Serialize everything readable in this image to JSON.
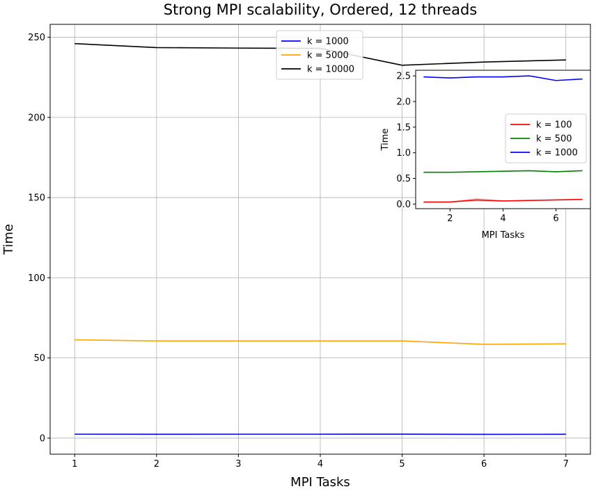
{
  "chart_data": [
    {
      "type": "line",
      "title": "Strong MPI scalability, Ordered, 12 threads",
      "xlabel": "MPI Tasks",
      "ylabel": "Time",
      "x": [
        1,
        2,
        3,
        4,
        5,
        6,
        7
      ],
      "xlim": [
        0.7,
        7.3
      ],
      "ylim": [
        -10,
        258
      ],
      "xticks": [
        1,
        2,
        3,
        4,
        5,
        6,
        7
      ],
      "yticks": [
        0,
        50,
        100,
        150,
        200,
        250
      ],
      "grid": true,
      "legend_position": "top-center",
      "series": [
        {
          "name": "k = 1000",
          "color": "#0000ff",
          "values": [
            2.47,
            2.45,
            2.47,
            2.47,
            2.49,
            2.4,
            2.43
          ]
        },
        {
          "name": "k = 5000",
          "color": "#ffa500",
          "values": [
            61.3,
            60.6,
            60.6,
            60.6,
            60.6,
            58.5,
            58.8
          ]
        },
        {
          "name": "k = 10000",
          "color": "#000000",
          "values": [
            246.0,
            243.5,
            243.2,
            243.0,
            232.5,
            234.5,
            235.8
          ]
        }
      ]
    },
    {
      "type": "line",
      "title": "",
      "xlabel": "MPI Tasks",
      "ylabel": "Time",
      "x": [
        1,
        2,
        3,
        4,
        5,
        6,
        7
      ],
      "xlim": [
        0.7,
        7.3
      ],
      "ylim": [
        -0.09,
        2.61
      ],
      "xticks": [
        2,
        4,
        6
      ],
      "yticks": [
        0.0,
        0.5,
        1.0,
        1.5,
        2.0,
        2.5
      ],
      "ytick_labels": [
        "0.0",
        "0.5",
        "1.0",
        "1.5",
        "2.0",
        "2.5"
      ],
      "grid": false,
      "legend_position": "center-right",
      "series": [
        {
          "name": "k = 100",
          "color": "#ff0000",
          "values": [
            0.04,
            0.04,
            0.08,
            0.06,
            0.07,
            0.08,
            0.09
          ],
          "band_low": [
            0.04,
            0.04,
            0.05,
            0.05,
            0.06,
            0.07,
            0.08
          ],
          "band_high": [
            0.04,
            0.05,
            0.12,
            0.07,
            0.08,
            0.09,
            0.1
          ]
        },
        {
          "name": "k = 500",
          "color": "#008000",
          "values": [
            0.62,
            0.62,
            0.63,
            0.64,
            0.65,
            0.63,
            0.65
          ]
        },
        {
          "name": "k = 1000",
          "color": "#0000ff",
          "values": [
            2.48,
            2.46,
            2.48,
            2.48,
            2.5,
            2.41,
            2.44
          ]
        }
      ]
    }
  ]
}
